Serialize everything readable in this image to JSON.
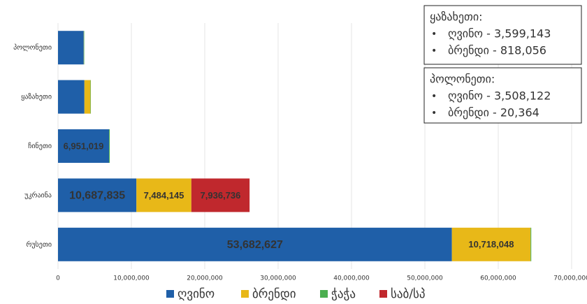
{
  "chart_data": {
    "type": "stacked-bar-horizontal",
    "categories": [
      "პოლონეთი",
      "ყაზახეთი",
      "ჩინეთი",
      "უკრაინა",
      "რუსეთი"
    ],
    "series": [
      {
        "name": "ღვინო",
        "color": "#1f5fa8",
        "values": [
          3508122,
          3599143,
          6951019,
          10687835,
          53682627
        ],
        "value_labels": [
          null,
          null,
          "6,951,019",
          "10,687,835",
          "53,682,627"
        ]
      },
      {
        "name": "ბრენდი",
        "color": "#e8b818",
        "values": [
          20364,
          818056,
          0,
          7484145,
          10718048
        ],
        "value_labels": [
          null,
          null,
          null,
          "7,484,145",
          "10,718,048"
        ]
      },
      {
        "name": "ჭაჭა",
        "color": "#4caf50",
        "values": [
          50000,
          60000,
          100000,
          0,
          100000
        ]
      },
      {
        "name": "საბ/სპ",
        "color": "#c0282d",
        "values": [
          0,
          0,
          0,
          7936736,
          0
        ],
        "value_labels": [
          null,
          null,
          null,
          "7,936,736",
          null
        ]
      }
    ],
    "xlim": [
      0,
      70000000
    ],
    "xticks": [
      0,
      {
        "value": 10000000,
        "label": "10,000,000"
      },
      {
        "value": 20000000,
        "label": "20,000,000"
      },
      {
        "value": 30000000,
        "label": "30,000,000"
      },
      {
        "value": 40000000,
        "label": "40,000,000"
      },
      {
        "value": 50000000,
        "label": "50,000,000"
      },
      {
        "value": 60000000,
        "label": "60,000,000"
      },
      {
        "value": 70000000,
        "label": "70,000,000"
      }
    ],
    "grid": true,
    "legend": "bottom",
    "annotations": [
      {
        "title": "ყაზახეთი:",
        "items": [
          "ღვინო - 3,599,143",
          "ბრენდი - 818,056"
        ]
      },
      {
        "title": "პოლონეთი:",
        "items": [
          "ღვინო - 3,508,122",
          "ბრენდი - 20,364"
        ]
      }
    ]
  }
}
